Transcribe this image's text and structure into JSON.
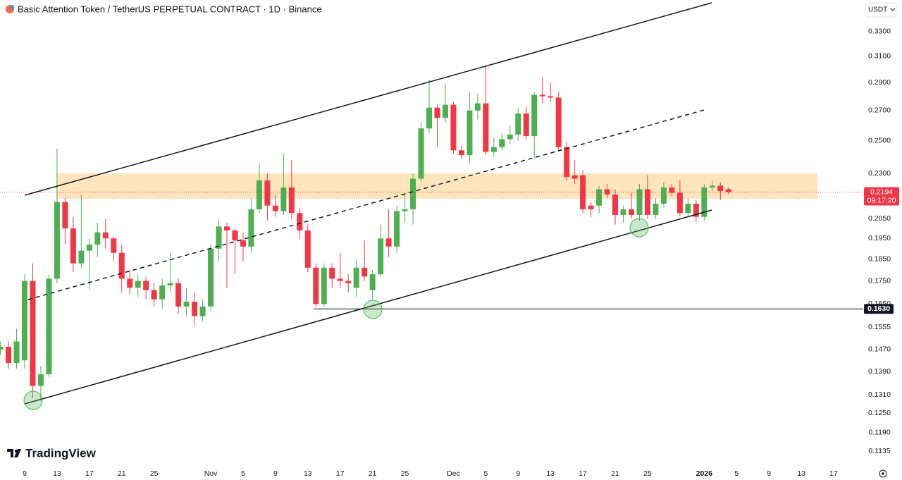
{
  "chart_data": {
    "type": "candlestick",
    "title": "Basic Attention Token / TetherUS PERPETUAL CONTRACT · 1D · Binance",
    "currency": "USDT",
    "watermark": "TradingView",
    "countdown": "09:17:20",
    "log_scale": true,
    "grid": false,
    "up_color": "#4caf50",
    "down_color": "#f23645",
    "categories": [
      null,
      null,
      null,
      "9",
      null,
      null,
      null,
      "13",
      null,
      null,
      null,
      "17",
      null,
      null,
      null,
      "21",
      null,
      null,
      null,
      "25",
      null,
      null,
      null,
      null,
      null,
      null,
      "Nov",
      null,
      null,
      null,
      "5",
      null,
      null,
      null,
      "9",
      null,
      null,
      null,
      "13",
      null,
      null,
      null,
      "17",
      null,
      null,
      null,
      "21",
      null,
      null,
      null,
      "25",
      null,
      null,
      null,
      null,
      null,
      "Dec",
      null,
      null,
      null,
      "5",
      null,
      null,
      null,
      "9",
      null,
      null,
      null,
      "13",
      null,
      null,
      null,
      "17",
      null,
      null,
      null,
      "21",
      null,
      null,
      null,
      "25",
      null,
      null,
      null,
      null,
      null,
      null,
      "2026",
      null,
      null,
      null,
      "5",
      null,
      null,
      null,
      "9",
      null,
      null,
      null,
      "13",
      null,
      null,
      null,
      "17",
      null,
      null,
      null
    ],
    "open": [
      0.147,
      0.148,
      0.142,
      0.143,
      0.175,
      0.134,
      0.138,
      0.176,
      0.214,
      0.2,
      0.183,
      0.189,
      0.192,
      0.198,
      0.195,
      0.188,
      0.176,
      0.172,
      0.175,
      0.171,
      0.167,
      0.173,
      0.174,
      0.164,
      0.166,
      0.16,
      0.164,
      0.19,
      0.201,
      0.199,
      0.194,
      0.191,
      0.21,
      0.226,
      0.212,
      0.209,
      0.222,
      0.208,
      0.199,
      0.181,
      0.165,
      0.181,
      0.176,
      0.175,
      0.172,
      0.181,
      0.171,
      0.178,
      0.195,
      0.191,
      0.209,
      0.21,
      0.227,
      0.258,
      0.272,
      0.265,
      0.274,
      0.244,
      0.241,
      0.27,
      0.275,
      0.243,
      0.246,
      0.251,
      0.254,
      0.268,
      0.253,
      0.281,
      0.28,
      0.279,
      0.246,
      0.229,
      0.229,
      0.212,
      0.212,
      0.221,
      0.218,
      0.207,
      0.21,
      0.207,
      0.221,
      0.207,
      0.213,
      0.222,
      0.219,
      0.208,
      0.213,
      0.206,
      0.222,
      0.223,
      0.221,
      null,
      null,
      null,
      null,
      null,
      null,
      null,
      null,
      null,
      null,
      null,
      null,
      null,
      null,
      null,
      null
    ],
    "high": [
      0.15,
      0.15,
      0.155,
      0.178,
      0.183,
      0.141,
      0.178,
      0.245,
      0.216,
      0.206,
      0.218,
      0.195,
      0.203,
      0.205,
      0.196,
      0.192,
      0.18,
      0.178,
      0.177,
      0.174,
      0.176,
      0.188,
      0.176,
      0.172,
      0.17,
      0.167,
      0.192,
      0.205,
      0.203,
      0.2,
      0.198,
      0.216,
      0.236,
      0.23,
      0.218,
      0.242,
      0.238,
      0.211,
      0.202,
      0.183,
      0.183,
      0.183,
      0.188,
      0.178,
      0.185,
      0.194,
      0.18,
      0.202,
      0.21,
      0.212,
      0.218,
      0.23,
      0.262,
      0.292,
      0.274,
      0.289,
      0.276,
      0.247,
      0.283,
      0.282,
      0.302,
      0.252,
      0.255,
      0.26,
      0.272,
      0.273,
      0.283,
      0.294,
      0.29,
      0.283,
      0.249,
      0.238,
      0.232,
      0.214,
      0.223,
      0.224,
      0.221,
      0.212,
      0.219,
      0.224,
      0.229,
      0.216,
      0.225,
      0.224,
      0.226,
      0.216,
      0.215,
      0.224,
      0.226,
      0.225,
      0.222,
      null,
      null,
      null,
      null,
      null,
      null,
      null,
      null,
      null,
      null,
      null,
      null,
      null,
      null,
      null,
      null
    ],
    "low": [
      0.145,
      0.14,
      0.14,
      0.14,
      0.13,
      0.129,
      0.137,
      0.174,
      0.192,
      0.179,
      0.181,
      0.171,
      0.186,
      0.19,
      0.184,
      0.17,
      0.169,
      0.168,
      0.167,
      0.164,
      0.163,
      0.17,
      0.161,
      0.16,
      0.156,
      0.158,
      0.162,
      0.184,
      0.172,
      0.178,
      0.184,
      0.188,
      0.208,
      0.204,
      0.206,
      0.207,
      0.205,
      0.195,
      0.179,
      0.164,
      0.164,
      0.172,
      0.172,
      0.17,
      0.168,
      0.175,
      0.167,
      0.177,
      0.186,
      0.188,
      0.203,
      0.202,
      0.225,
      0.255,
      0.246,
      0.262,
      0.242,
      0.239,
      0.236,
      0.264,
      0.241,
      0.24,
      0.244,
      0.248,
      0.25,
      0.251,
      0.239,
      0.275,
      0.276,
      0.244,
      0.226,
      0.224,
      0.208,
      0.206,
      0.208,
      0.216,
      0.202,
      0.203,
      0.205,
      0.204,
      0.205,
      0.205,
      0.211,
      0.217,
      0.206,
      0.206,
      0.203,
      0.204,
      0.22,
      0.215,
      0.218,
      null,
      null,
      null,
      null,
      null,
      null,
      null,
      null,
      null,
      null,
      null,
      null,
      null,
      null,
      null,
      null
    ],
    "close": [
      0.148,
      0.142,
      0.15,
      0.175,
      0.134,
      0.138,
      0.176,
      0.214,
      0.2,
      0.183,
      0.189,
      0.192,
      0.198,
      0.195,
      0.188,
      0.176,
      0.172,
      0.175,
      0.171,
      0.167,
      0.173,
      0.174,
      0.164,
      0.166,
      0.16,
      0.164,
      0.19,
      0.201,
      0.199,
      0.194,
      0.191,
      0.21,
      0.226,
      0.212,
      0.209,
      0.222,
      0.208,
      0.199,
      0.181,
      0.165,
      0.181,
      0.176,
      0.175,
      0.174,
      0.181,
      0.177,
      0.178,
      0.195,
      0.191,
      0.209,
      0.21,
      0.227,
      0.258,
      0.272,
      0.265,
      0.274,
      0.244,
      0.241,
      0.27,
      0.275,
      0.243,
      0.246,
      0.251,
      0.254,
      0.268,
      0.253,
      0.281,
      0.28,
      0.279,
      0.246,
      0.228,
      0.227,
      0.21,
      0.21,
      0.221,
      0.218,
      0.207,
      0.21,
      0.207,
      0.221,
      0.207,
      0.213,
      0.222,
      0.219,
      0.208,
      0.213,
      0.206,
      0.222,
      0.223,
      0.22,
      0.2194,
      null,
      null,
      null,
      null,
      null,
      null,
      null,
      null,
      null,
      null,
      null,
      null,
      null,
      null,
      null,
      null
    ],
    "ylim": [
      0.1095,
      0.3577
    ],
    "yticks": [
      {
        "value": 0.33,
        "label": "0.3300"
      },
      {
        "value": 0.31,
        "label": "0.3100"
      },
      {
        "value": 0.29,
        "label": "0.2900"
      },
      {
        "value": 0.27,
        "label": "0.2700"
      },
      {
        "value": 0.25,
        "label": "0.2500"
      },
      {
        "value": 0.23,
        "label": "0.2300"
      },
      {
        "value": 0.205,
        "label": "0.2050"
      },
      {
        "value": 0.195,
        "label": "0.1950"
      },
      {
        "value": 0.185,
        "label": "0.1850"
      },
      {
        "value": 0.175,
        "label": "0.1750"
      },
      {
        "value": 0.165,
        "label": "0.1650"
      },
      0.1555,
      {
        "value": 0.147,
        "label": "0.1470"
      },
      {
        "value": 0.139,
        "label": "0.1390"
      },
      {
        "value": 0.131,
        "label": "0.1310"
      },
      {
        "value": 0.125,
        "label": "0.1250"
      },
      {
        "value": 0.119,
        "label": "0.1190"
      },
      0.1135
    ],
    "price_line": {
      "value": 0.163,
      "label": "0.1630"
    }
  }
}
